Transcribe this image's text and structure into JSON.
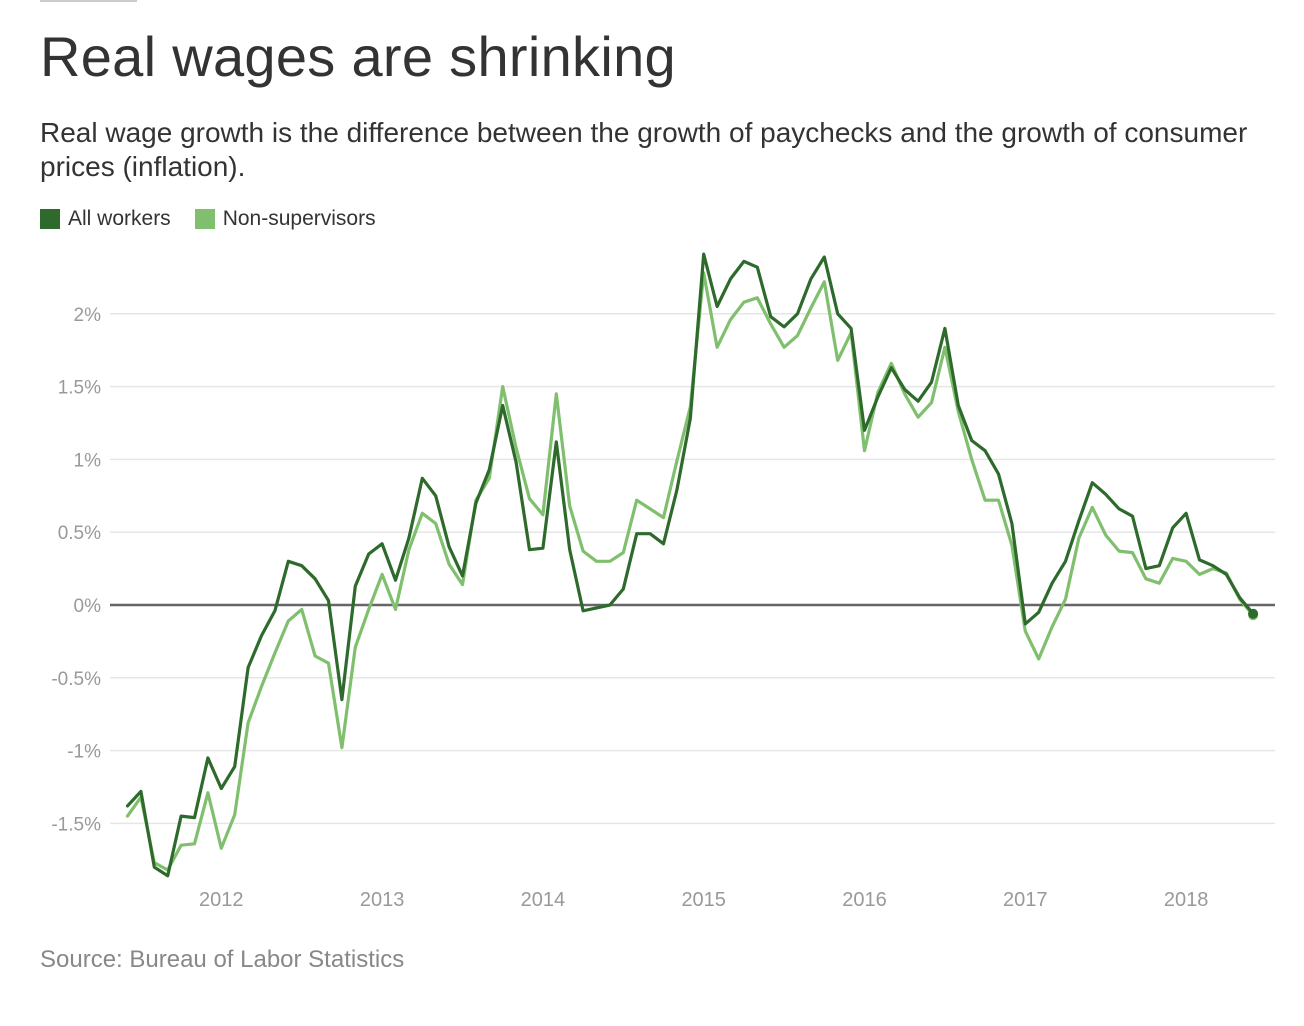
{
  "page": {
    "title": "Real wages are shrinking",
    "subtitle": "Real wage growth is the difference between the growth of paychecks and the growth of consumer prices (inflation).",
    "source": "Source: Bureau of Labor Statistics"
  },
  "chart_data": {
    "type": "line",
    "title": "Real wages are shrinking",
    "subtitle": "Real wage growth is the difference between the growth of paychecks and the growth of consumer prices (inflation).",
    "xlabel": "",
    "ylabel": "",
    "x_ticks": [
      "2012",
      "2013",
      "2014",
      "2015",
      "2016",
      "2017",
      "2018"
    ],
    "y_ticks": [
      "-1.5%",
      "-1%",
      "-0.5%",
      "0%",
      "0.5%",
      "1%",
      "1.5%",
      "2%"
    ],
    "ylim": [
      -1.85,
      2.4
    ],
    "x_start": "2011-06",
    "x_frequency": "monthly",
    "grid": true,
    "legend_position": "top-left",
    "zero_line": true,
    "end_marker": true,
    "series": [
      {
        "name": "All workers",
        "color": "#2d6a2b",
        "values": [
          -1.38,
          -1.28,
          -1.8,
          -1.86,
          -1.45,
          -1.46,
          -1.05,
          -1.26,
          -1.11,
          -0.43,
          -0.21,
          -0.04,
          0.3,
          0.27,
          0.18,
          0.03,
          -0.65,
          0.13,
          0.35,
          0.42,
          0.17,
          0.46,
          0.87,
          0.75,
          0.4,
          0.2,
          0.7,
          0.93,
          1.37,
          0.98,
          0.38,
          0.39,
          1.12,
          0.38,
          -0.04,
          -0.02,
          0.0,
          0.11,
          0.49,
          0.49,
          0.42,
          0.79,
          1.28,
          2.41,
          2.05,
          2.24,
          2.36,
          2.32,
          1.98,
          1.91,
          2.0,
          2.24,
          2.39,
          2.0,
          1.9,
          1.2,
          1.43,
          1.63,
          1.48,
          1.4,
          1.53,
          1.9,
          1.37,
          1.13,
          1.06,
          0.9,
          0.56,
          -0.13,
          -0.05,
          0.15,
          0.3,
          0.58,
          0.84,
          0.76,
          0.66,
          0.61,
          0.25,
          0.27,
          0.53,
          0.63,
          0.31,
          0.27,
          0.21,
          0.05,
          -0.06
        ]
      },
      {
        "name": "Non-supervisors",
        "color": "#7fbf6e",
        "values": [
          -1.45,
          -1.32,
          -1.77,
          -1.82,
          -1.65,
          -1.64,
          -1.29,
          -1.67,
          -1.44,
          -0.81,
          -0.56,
          -0.33,
          -0.11,
          -0.03,
          -0.35,
          -0.4,
          -0.98,
          -0.29,
          -0.03,
          0.21,
          -0.03,
          0.38,
          0.63,
          0.56,
          0.28,
          0.14,
          0.72,
          0.87,
          1.5,
          1.08,
          0.73,
          0.62,
          1.45,
          0.68,
          0.37,
          0.3,
          0.3,
          0.36,
          0.72,
          0.66,
          0.6,
          0.99,
          1.36,
          2.28,
          1.77,
          1.96,
          2.08,
          2.11,
          1.93,
          1.77,
          1.85,
          2.04,
          2.22,
          1.68,
          1.87,
          1.06,
          1.46,
          1.66,
          1.45,
          1.29,
          1.39,
          1.77,
          1.33,
          1.0,
          0.72,
          0.72,
          0.41,
          -0.18,
          -0.37,
          -0.15,
          0.04,
          0.46,
          0.67,
          0.48,
          0.37,
          0.36,
          0.18,
          0.15,
          0.32,
          0.3,
          0.21,
          0.25,
          0.22,
          0.04,
          -0.07
        ]
      }
    ]
  }
}
